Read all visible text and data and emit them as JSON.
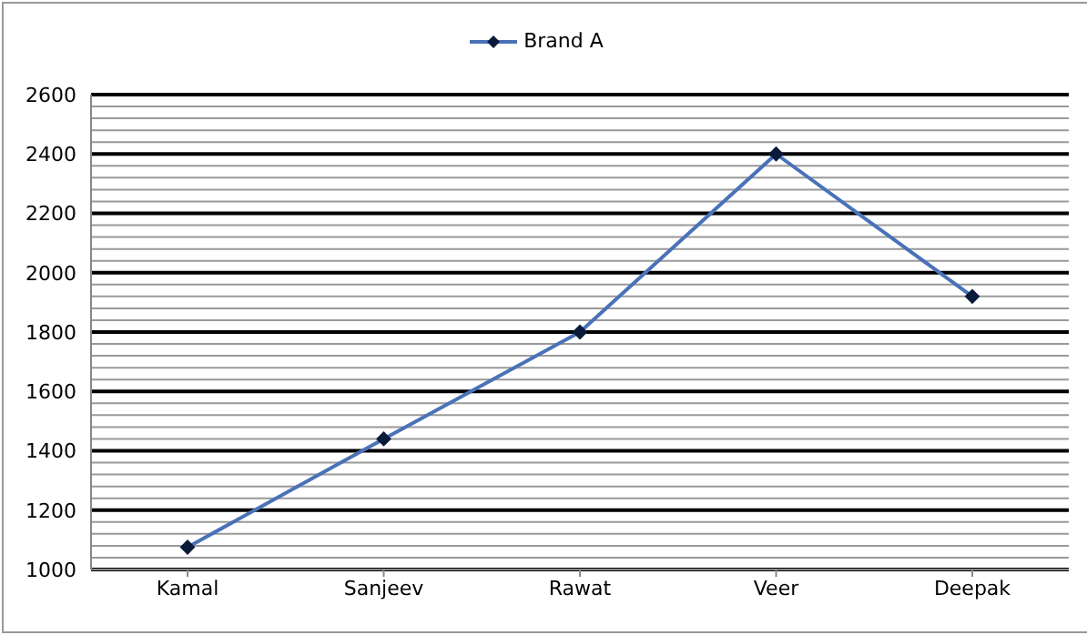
{
  "chart_data": {
    "type": "line",
    "categories": [
      "Kamal",
      "Sanjeev",
      "Rawat",
      "Veer",
      "Deepak"
    ],
    "series": [
      {
        "name": "Brand A",
        "color": "#4a72b8",
        "values": [
          1075,
          1440,
          1800,
          2400,
          1920
        ]
      }
    ],
    "ylim": [
      1000,
      2600
    ],
    "yticks": [
      1000,
      {
        "value": 1040,
        "label": null
      },
      {
        "value": 1080,
        "label": null
      },
      {
        "value": 1120,
        "label": null
      },
      {
        "value": 1160,
        "label": null
      },
      1200,
      {
        "value": 1240,
        "label": null
      },
      {
        "value": 1280,
        "label": null
      },
      {
        "value": 1320,
        "label": null
      },
      {
        "value": 1360,
        "label": null
      },
      1400,
      {
        "value": 1440,
        "label": null
      },
      {
        "value": 1480,
        "label": null
      },
      {
        "value": 1520,
        "label": null
      },
      {
        "value": 1560,
        "label": null
      },
      1600,
      {
        "value": 1640,
        "label": null
      },
      {
        "value": 1680,
        "label": null
      },
      {
        "value": 1720,
        "label": null
      },
      {
        "value": 1760,
        "label": null
      },
      1800,
      {
        "value": 1840,
        "label": null
      },
      {
        "value": 1880,
        "label": null
      },
      {
        "value": 1920,
        "label": null
      },
      {
        "value": 1960,
        "label": null
      },
      2000,
      {
        "value": 2040,
        "label": null
      },
      {
        "value": 2080,
        "label": null
      },
      {
        "value": 2120,
        "label": null
      },
      {
        "value": 2160,
        "label": null
      },
      2200,
      {
        "value": 2240,
        "label": null
      },
      {
        "value": 2280,
        "label": null
      },
      {
        "value": 2320,
        "label": null
      },
      {
        "value": 2360,
        "label": null
      },
      2400,
      {
        "value": 2440,
        "label": null
      },
      {
        "value": 2480,
        "label": null
      },
      {
        "value": 2520,
        "label": null
      },
      {
        "value": 2560,
        "label": null
      },
      2600
    ],
    "grid": "y",
    "legend": "top",
    "marker": "diamond",
    "line_style": "solid"
  }
}
